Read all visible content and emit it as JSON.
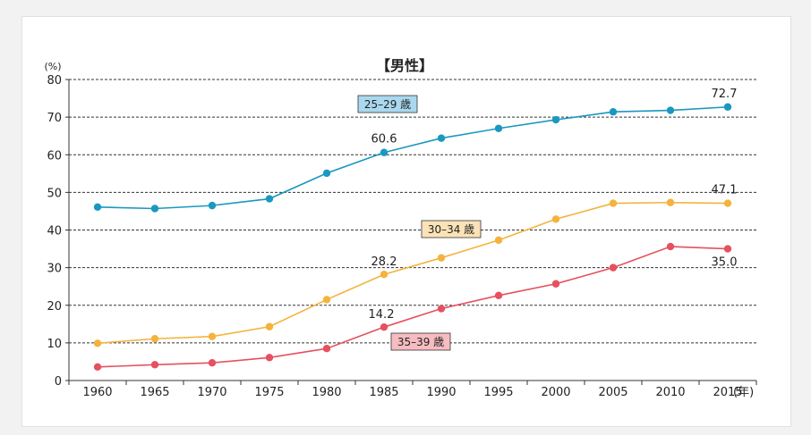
{
  "chart_data": {
    "type": "line",
    "title": "【男性】",
    "ylabel": "(%)",
    "xlabel": "(年)",
    "ylim": [
      0,
      80
    ],
    "yticks": [
      0,
      10,
      20,
      30,
      40,
      50,
      60,
      70,
      80
    ],
    "categories": [
      "1960",
      "1965",
      "1970",
      "1975",
      "1980",
      "1985",
      "1990",
      "1995",
      "2000",
      "2005",
      "2010",
      "2015"
    ],
    "grid": "horizontal-dashed",
    "series": [
      {
        "name": "25–29 歳",
        "color": "#1a98c0",
        "label_bg": "#a9d8ef",
        "values": [
          46.1,
          45.7,
          46.5,
          48.3,
          55.1,
          60.6,
          64.4,
          67.0,
          69.3,
          71.4,
          71.8,
          72.7
        ],
        "annotations": [
          {
            "index": 5,
            "text": "60.6"
          },
          {
            "index": 11,
            "text": "72.7"
          }
        ]
      },
      {
        "name": "30–34 歳",
        "color": "#f3b33d",
        "label_bg": "#fbe3b8",
        "values": [
          9.9,
          11.1,
          11.7,
          14.3,
          21.5,
          28.2,
          32.6,
          37.3,
          42.9,
          47.1,
          47.3,
          47.1
        ],
        "annotations": [
          {
            "index": 5,
            "text": "28.2"
          },
          {
            "index": 11,
            "text": "47.1"
          }
        ]
      },
      {
        "name": "35–39 歳",
        "color": "#e6505f",
        "label_bg": "#f6bcc1",
        "values": [
          3.6,
          4.2,
          4.7,
          6.1,
          8.5,
          14.2,
          19.1,
          22.6,
          25.7,
          30.0,
          35.6,
          35.0
        ],
        "annotations": [
          {
            "index": 5,
            "text": "14.2"
          },
          {
            "index": 11,
            "text": "35.0"
          }
        ]
      }
    ]
  }
}
